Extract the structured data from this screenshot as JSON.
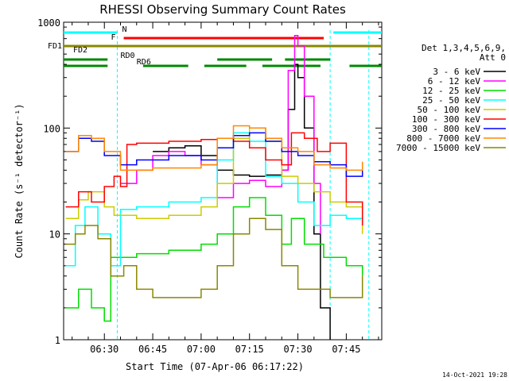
{
  "chart_data": {
    "type": "line",
    "title": "RHESSI Observing Summary Count Rates",
    "xlabel": "Start Time (07-Apr-06 06:17:22)",
    "ylabel": "Count Rate (s⁻¹ detector⁻¹)",
    "y_scale": "log",
    "ylim": [
      1,
      1000
    ],
    "x_range_minutes": [
      "06:17:22",
      "07:56:00"
    ],
    "x_ticks": [
      "06:30",
      "06:45",
      "07:00",
      "07:15",
      "07:30",
      "07:45"
    ],
    "y_ticks": [
      "1",
      "10",
      "100",
      "1000"
    ],
    "legend": {
      "header": [
        "Det 1,3,4,5,6,9,",
        "Att 0"
      ],
      "placement": "right"
    },
    "series": [
      {
        "name": "3 - 6 keV",
        "color": "#000000",
        "x": [
          "06:18",
          "06:25",
          "06:30",
          "06:35",
          "06:40",
          "06:45",
          "06:50",
          "06:55",
          "07:00",
          "07:05",
          "07:10",
          "07:15",
          "07:20",
          "07:25",
          "07:27",
          "07:29",
          "07:30",
          "07:32",
          "07:35",
          "07:37",
          "07:40"
        ],
        "y": [
          null,
          null,
          null,
          null,
          null,
          60,
          65,
          68,
          55,
          40,
          36,
          35,
          36,
          40,
          150,
          400,
          300,
          100,
          10,
          2,
          1
        ]
      },
      {
        "name": "6 - 12 keV",
        "color": "#ff00ff",
        "x": [
          "06:35",
          "06:40",
          "06:45",
          "06:50",
          "06:55",
          "07:00",
          "07:05",
          "07:10",
          "07:15",
          "07:20",
          "07:25",
          "07:27",
          "07:29",
          "07:30",
          "07:32",
          "07:35",
          "07:37"
        ],
        "y": [
          30,
          40,
          55,
          60,
          55,
          45,
          22,
          30,
          32,
          28,
          40,
          350,
          750,
          600,
          200,
          30,
          10
        ]
      },
      {
        "name": "12 - 25 keV",
        "color": "#00dd00",
        "x": [
          "06:18",
          "06:22",
          "06:26",
          "06:30",
          "06:32",
          "06:40",
          "06:50",
          "07:00",
          "07:05",
          "07:10",
          "07:15",
          "07:20",
          "07:25",
          "07:28",
          "07:32",
          "07:38",
          "07:45",
          "07:50"
        ],
        "y": [
          2,
          3,
          2,
          1.5,
          6,
          6.5,
          7,
          8,
          10,
          18,
          22,
          15,
          8,
          14,
          8,
          6,
          5,
          4
        ]
      },
      {
        "name": "25 - 50 keV",
        "color": "#00ffff",
        "x": [
          "06:18",
          "06:21",
          "06:24",
          "06:28",
          "06:32",
          "06:35",
          "06:40",
          "06:50",
          "07:00",
          "07:05",
          "07:10",
          "07:15",
          "07:20",
          "07:25",
          "07:30",
          "07:35",
          "07:40",
          "07:45",
          "07:50"
        ],
        "y": [
          5,
          12,
          18,
          10,
          5,
          17,
          18,
          20,
          22,
          50,
          90,
          75,
          35,
          30,
          20,
          12,
          15,
          14,
          13
        ]
      },
      {
        "name": "50 - 100 keV",
        "color": "#cccc00",
        "x": [
          "06:18",
          "06:22",
          "06:25",
          "06:30",
          "06:33",
          "06:40",
          "06:50",
          "07:00",
          "07:05",
          "07:10",
          "07:15",
          "07:20",
          "07:25",
          "07:30",
          "07:35",
          "07:40",
          "07:45",
          "07:50"
        ],
        "y": [
          14,
          21,
          25,
          18,
          15,
          14,
          15,
          18,
          30,
          80,
          100,
          75,
          35,
          30,
          25,
          20,
          18,
          10
        ]
      },
      {
        "name": "100 - 300 keV",
        "color": "#ff0000",
        "x": [
          "06:18",
          "06:22",
          "06:26",
          "06:30",
          "06:33",
          "06:35",
          "06:37",
          "06:40",
          "06:50",
          "07:00",
          "07:05",
          "07:10",
          "07:15",
          "07:20",
          "07:25",
          "07:28",
          "07:32",
          "07:36",
          "07:40",
          "07:45",
          "07:50"
        ],
        "y": [
          18,
          25,
          20,
          28,
          35,
          28,
          70,
          72,
          75,
          78,
          80,
          75,
          65,
          50,
          45,
          90,
          80,
          60,
          72,
          20,
          12
        ]
      },
      {
        "name": "300 - 800 keV",
        "color": "#0000ff",
        "x": [
          "06:18",
          "06:22",
          "06:26",
          "06:30",
          "06:35",
          "06:40",
          "06:50",
          "07:00",
          "07:05",
          "07:10",
          "07:15",
          "07:20",
          "07:25",
          "07:30",
          "07:35",
          "07:40",
          "07:45",
          "07:50"
        ],
        "y": [
          60,
          80,
          75,
          55,
          45,
          50,
          55,
          50,
          65,
          85,
          90,
          75,
          60,
          55,
          48,
          45,
          35,
          40
        ]
      },
      {
        "name": "800 - 7000 keV",
        "color": "#ff8800",
        "x": [
          "06:18",
          "06:22",
          "06:26",
          "06:30",
          "06:35",
          "06:40",
          "06:45",
          "06:50",
          "07:00",
          "07:05",
          "07:10",
          "07:15",
          "07:20",
          "07:25",
          "07:30",
          "07:35",
          "07:40",
          "07:45",
          "07:50"
        ],
        "y": [
          60,
          85,
          80,
          60,
          40,
          40,
          42,
          42,
          45,
          80,
          105,
          100,
          80,
          65,
          60,
          45,
          42,
          40,
          48
        ]
      },
      {
        "name": "7000 - 15000 keV",
        "color": "#888800",
        "x": [
          "06:18",
          "06:21",
          "06:24",
          "06:28",
          "06:32",
          "06:36",
          "06:40",
          "06:45",
          "06:50",
          "07:00",
          "07:05",
          "07:10",
          "07:15",
          "07:20",
          "07:25",
          "07:30",
          "07:35",
          "07:40",
          "07:45",
          "07:50"
        ],
        "y": [
          8,
          10,
          12,
          9,
          4,
          5,
          3,
          2.5,
          2.5,
          3,
          5,
          10,
          14,
          11,
          5,
          3,
          3,
          2.5,
          2.5,
          4
        ]
      }
    ],
    "annotations": [
      {
        "label": "N",
        "color": "#00ffff",
        "segments": [
          [
            "06:17:22",
            "06:34"
          ],
          [
            "07:41",
            "07:56"
          ]
        ]
      },
      {
        "label": "F",
        "color": "#ff0000",
        "segments": [
          [
            "06:36",
            "07:38"
          ]
        ]
      },
      {
        "label": "FD1",
        "color": "#888800",
        "segments": [
          [
            "06:17:22",
            "07:56"
          ]
        ]
      },
      {
        "label": "FD2",
        "color": "#888800",
        "segments": []
      },
      {
        "label": "RD0",
        "color": "#008800",
        "segments": [
          [
            "06:17:22",
            "06:31"
          ],
          [
            "07:05",
            "07:22"
          ],
          [
            "07:26",
            "07:40"
          ]
        ]
      },
      {
        "label": "RD6",
        "color": "#008800",
        "segments": [
          [
            "06:17:22",
            "06:31"
          ],
          [
            "06:42",
            "06:56"
          ],
          [
            "07:01",
            "07:14"
          ],
          [
            "07:19",
            "07:37"
          ],
          [
            "07:46",
            "07:56"
          ]
        ]
      }
    ],
    "vertical_markers": [
      "06:17:22",
      "06:34",
      "07:40",
      "07:52"
    ],
    "timestamp": "14-Oct-2021 19:28"
  }
}
